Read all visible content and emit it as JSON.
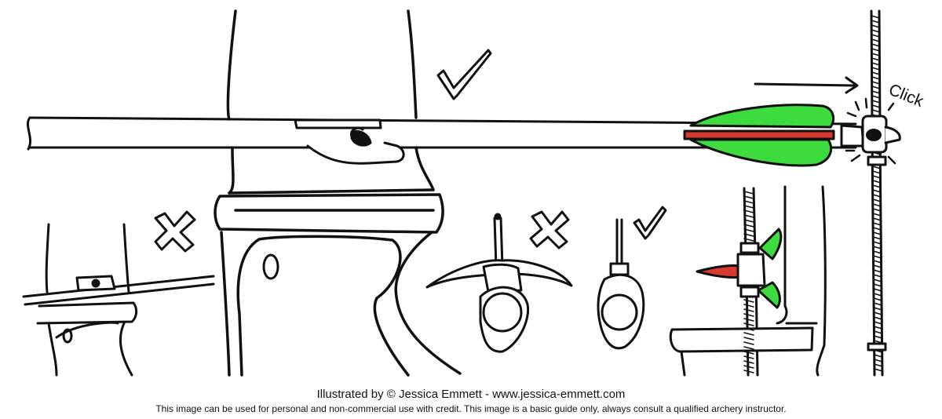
{
  "annotations": {
    "click_label": "Click"
  },
  "colors": {
    "fletching": "#3ddb3d",
    "cock_vane": "#d8392f",
    "outline": "#111111",
    "background": "#ffffff"
  },
  "marks": {
    "top_right_check": "check-mark-icon",
    "left_cross": "cross-mark-icon",
    "middle_cross": "cross-mark-icon",
    "middle_check": "check-mark-icon"
  },
  "credits": {
    "line1": "Illustrated by © Jessica Emmett - www.jessica-emmett.com",
    "line2": "This image can be used for personal and non-commercial use with credit. This image is a basic guide only, always consult a qualified archery instructor."
  }
}
